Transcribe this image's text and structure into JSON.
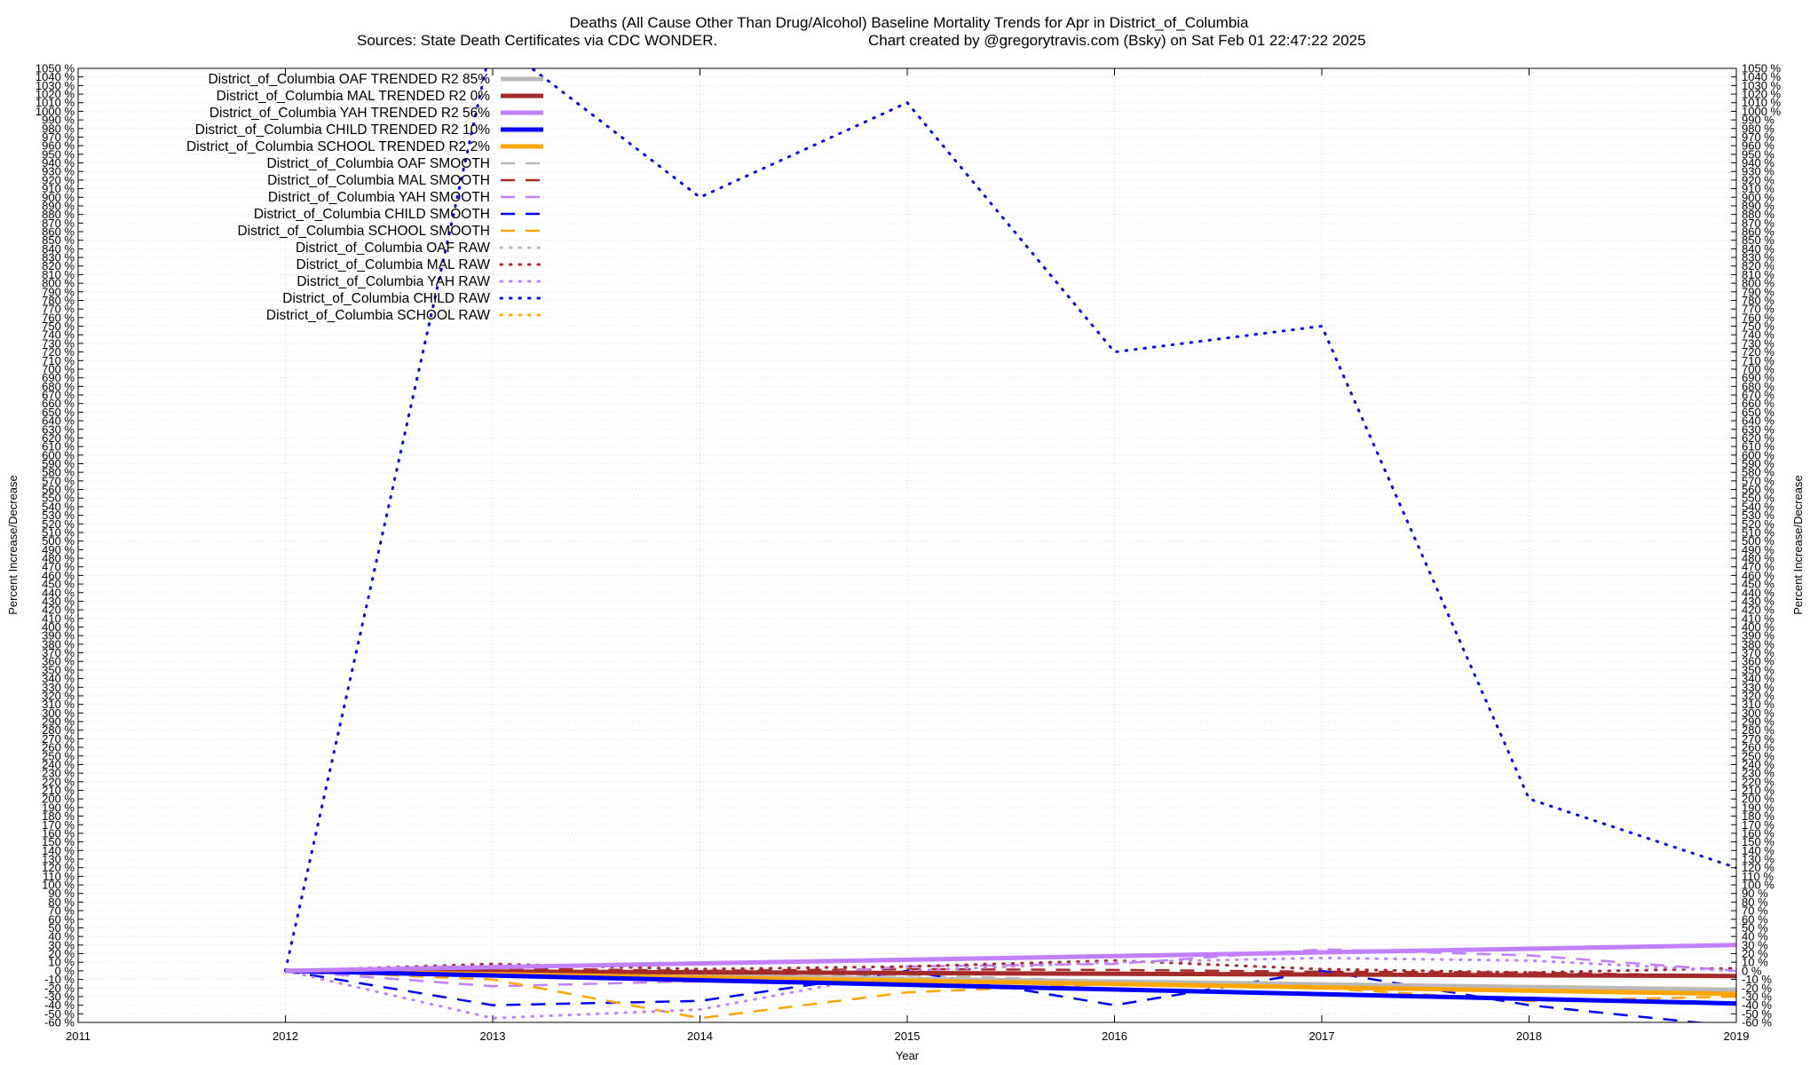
{
  "chart_data": {
    "type": "line",
    "title": "Deaths (All Cause Other Than Drug/Alcohol)  Baseline Mortality Trends for Apr in District_of_Columbia",
    "subtitle_left": "Sources: State Death Certificates via CDC WONDER.",
    "subtitle_right": "Chart created by @gregorytravis.com (Bsky) on Sat Feb 01 22:47:22 2025",
    "xlabel": "Year",
    "ylabel_left": "Percent Increase/Decrease",
    "ylabel_right": "Percent Increase/Decrease",
    "xlim": [
      2011,
      2019
    ],
    "ylim": [
      -60,
      1050
    ],
    "x_ticks": [
      "2011",
      "2012",
      "2013",
      "2014",
      "2015",
      "2016",
      "2017",
      "2018",
      "2019"
    ],
    "y_tick_step": 10,
    "y_tick_suffix": " %",
    "grid": true,
    "legend_position": "top-left",
    "series": [
      {
        "name": "District_of_Columbia OAF TRENDED R2  85%",
        "color": "#b9b9b9",
        "style": "solid",
        "width": 5,
        "x": [
          2012,
          2019
        ],
        "values": [
          0,
          -22
        ]
      },
      {
        "name": "District_of_Columbia MAL TRENDED R2   0%",
        "color": "#a52a2a",
        "style": "solid",
        "width": 5,
        "x": [
          2012,
          2019
        ],
        "values": [
          0,
          -6
        ]
      },
      {
        "name": "District_of_Columbia YAH TRENDED R2  56%",
        "color": "#c080ff",
        "style": "solid",
        "width": 5,
        "x": [
          2012,
          2019
        ],
        "values": [
          0,
          30
        ]
      },
      {
        "name": "District_of_Columbia CHILD TRENDED R2  10%",
        "color": "#0000ff",
        "style": "solid",
        "width": 5,
        "x": [
          2012,
          2019
        ],
        "values": [
          0,
          -38
        ]
      },
      {
        "name": "District_of_Columbia SCHOOL TRENDED R2   2%",
        "color": "#ffa500",
        "style": "solid",
        "width": 5,
        "x": [
          2012,
          2019
        ],
        "values": [
          0,
          -27
        ]
      },
      {
        "name": "District_of_Columbia OAF SMOOTH",
        "color": "#b9b9b9",
        "style": "dashed",
        "width": 2.5,
        "x": [
          2012,
          2013,
          2014,
          2015,
          2016,
          2017,
          2018,
          2019
        ],
        "values": [
          0,
          -5,
          -8,
          -5,
          -12,
          -15,
          -20,
          -22
        ]
      },
      {
        "name": "District_of_Columbia MAL SMOOTH",
        "color": "#a52a2a",
        "style": "dashed",
        "width": 2.5,
        "x": [
          2012,
          2013,
          2014,
          2015,
          2016,
          2017,
          2018,
          2019
        ],
        "values": [
          0,
          3,
          0,
          2,
          1,
          -1,
          -2,
          -6
        ]
      },
      {
        "name": "District_of_Columbia YAH SMOOTH",
        "color": "#c080ff",
        "style": "dashed",
        "width": 2.5,
        "x": [
          2012,
          2013,
          2014,
          2015,
          2016,
          2017,
          2018,
          2019
        ],
        "values": [
          0,
          -18,
          -12,
          5,
          8,
          25,
          18,
          0
        ]
      },
      {
        "name": "District_of_Columbia CHILD SMOOTH",
        "color": "#0000ff",
        "style": "dashed",
        "width": 2.5,
        "x": [
          2012,
          2013,
          2014,
          2015,
          2016,
          2017,
          2018,
          2019
        ],
        "values": [
          0,
          -40,
          -35,
          0,
          -40,
          0,
          -40,
          -65
        ]
      },
      {
        "name": "District_of_Columbia SCHOOL SMOOTH",
        "color": "#ffa500",
        "style": "dashed",
        "width": 2.5,
        "x": [
          2012,
          2013,
          2014,
          2015,
          2016,
          2017,
          2018,
          2019
        ],
        "values": [
          0,
          -10,
          -55,
          -25,
          -15,
          -20,
          -35,
          -30
        ]
      },
      {
        "name": "District_of_Columbia OAF RAW",
        "color": "#b9b9b9",
        "style": "dotted",
        "width": 3,
        "x": [
          2012,
          2013,
          2014,
          2015,
          2016,
          2017,
          2018,
          2019
        ],
        "values": [
          0,
          -3,
          -10,
          -8,
          -15,
          -18,
          -22,
          -25
        ]
      },
      {
        "name": "District_of_Columbia MAL RAW",
        "color": "#a52a2a",
        "style": "dotted",
        "width": 3,
        "x": [
          2012,
          2013,
          2014,
          2015,
          2016,
          2017,
          2018,
          2019
        ],
        "values": [
          0,
          8,
          2,
          5,
          12,
          2,
          -2,
          3
        ]
      },
      {
        "name": "District_of_Columbia YAH RAW",
        "color": "#c080ff",
        "style": "dotted",
        "width": 3,
        "x": [
          2012,
          2013,
          2014,
          2015,
          2016,
          2017,
          2018,
          2019
        ],
        "values": [
          0,
          -55,
          -45,
          0,
          10,
          15,
          12,
          0
        ]
      },
      {
        "name": "District_of_Columbia CHILD RAW",
        "color": "#0000ff",
        "style": "dotted",
        "width": 3,
        "x": [
          2012,
          2013,
          2014,
          2015,
          2016,
          2017,
          2018,
          2019
        ],
        "values": [
          0,
          1085,
          900,
          1010,
          720,
          750,
          200,
          120
        ]
      },
      {
        "name": "District_of_Columbia SCHOOL RAW",
        "color": "#ffa500",
        "style": "dotted",
        "width": 3,
        "x": [
          2012,
          2013,
          2014,
          2015,
          2016,
          2017,
          2018,
          2019
        ],
        "values": [
          0,
          -20,
          -40,
          -20,
          -25,
          -28,
          -30,
          -25
        ]
      }
    ]
  }
}
